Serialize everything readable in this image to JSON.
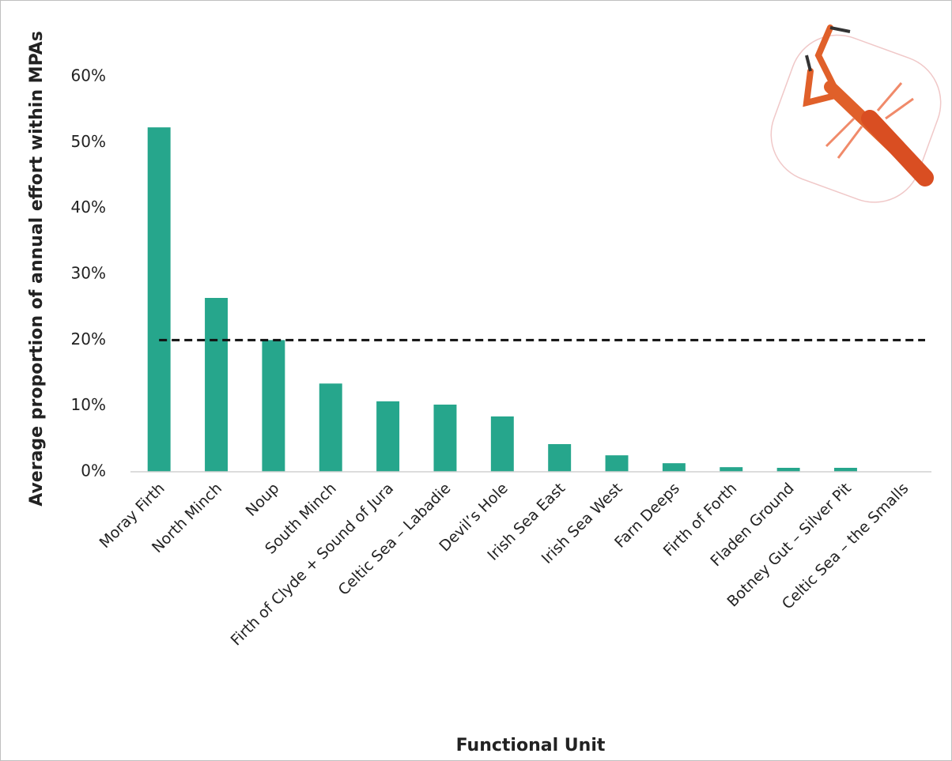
{
  "chart_data": {
    "type": "bar",
    "x_label": "Functional Unit",
    "y_label": "Average proportion of annual effort within MPAs",
    "categories": [
      "Moray Firth",
      "North Minch",
      "Noup",
      "South Minch",
      "Firth of Clyde + Sound of Jura",
      "Celtic Sea – Labadie",
      "Devil’s Hole",
      "Irish Sea East",
      "Irish Sea West",
      "Farn Deeps",
      "Firth of Forth",
      "Fladen Ground",
      "Botney Gut – Silver Pit",
      "Celtic Sea – the Smalls"
    ],
    "values": [
      52.3,
      26.4,
      20.0,
      13.4,
      10.7,
      10.2,
      8.4,
      4.2,
      2.5,
      1.3,
      0.7,
      0.6,
      0.6,
      0
    ],
    "color": "#26a68c",
    "reference_line": 20,
    "ylim": [
      0,
      60
    ],
    "yticks": [
      {
        "value": 0,
        "label": "0%"
      },
      {
        "value": 10,
        "label": "10%"
      },
      {
        "value": 20,
        "label": "20%"
      },
      {
        "value": 30,
        "label": "30%"
      },
      {
        "value": 40,
        "label": "40%"
      },
      {
        "value": 50,
        "label": "50%"
      },
      {
        "value": 60,
        "label": "60%"
      }
    ],
    "grid": false
  }
}
